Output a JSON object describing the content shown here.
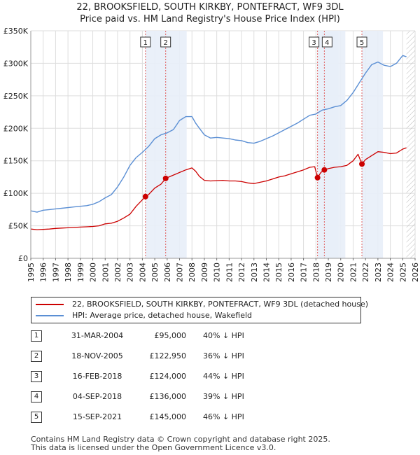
{
  "title_line1": "22, BROOKSFIELD, SOUTH KIRKBY, PONTEFRACT, WF9 3DL",
  "title_line2": "Price paid vs. HM Land Registry's House Price Index (HPI)",
  "colors": {
    "property": "#cc0000",
    "hpi": "#5b8fd4",
    "hatch": "#bbbbbb",
    "grid": "#dddddd",
    "band": "#e8eef8",
    "marker_line": "#e06060"
  },
  "chart_data": {
    "type": "line",
    "xlim": [
      1995,
      2026
    ],
    "ylim": [
      0,
      350000
    ],
    "x_ticks": [
      1995,
      1996,
      1997,
      1998,
      1999,
      2000,
      2001,
      2002,
      2003,
      2004,
      2005,
      2006,
      2007,
      2008,
      2009,
      2010,
      2011,
      2012,
      2013,
      2014,
      2015,
      2016,
      2017,
      2018,
      2019,
      2020,
      2021,
      2022,
      2023,
      2024,
      2025,
      2026
    ],
    "y_ticks": [
      {
        "value": 0,
        "label": "£0"
      },
      {
        "value": 50000,
        "label": "£50K"
      },
      {
        "value": 100000,
        "label": "£100K"
      },
      {
        "value": 150000,
        "label": "£150K"
      },
      {
        "value": 200000,
        "label": "£200K"
      },
      {
        "value": 250000,
        "label": "£250K"
      },
      {
        "value": 300000,
        "label": "£300K"
      },
      {
        "value": 350000,
        "label": "£350K"
      }
    ],
    "hatch_from": 2025.3,
    "series": [
      {
        "name": "22, BROOKSFIELD, SOUTH KIRKBY, PONTEFRACT, WF9 3DL (detached house)",
        "key": "property",
        "x": [
          1995,
          1995.5,
          1996,
          1996.5,
          1997,
          1997.5,
          1998,
          1998.5,
          1999,
          1999.5,
          2000,
          2000.5,
          2001,
          2001.5,
          2002,
          2002.5,
          2003,
          2003.5,
          2004.25,
          2004.5,
          2005,
          2005.5,
          2005.88,
          2006,
          2006.5,
          2007,
          2007.5,
          2008,
          2008.3,
          2008.6,
          2009,
          2009.5,
          2010,
          2010.5,
          2011,
          2011.5,
          2012,
          2012.5,
          2013,
          2013.5,
          2014,
          2014.5,
          2015,
          2015.5,
          2016,
          2016.5,
          2017,
          2017.5,
          2017.9,
          2018.13,
          2018.4,
          2018.68,
          2019,
          2019.5,
          2020,
          2020.5,
          2021,
          2021.4,
          2021.71,
          2022,
          2022.5,
          2023,
          2023.5,
          2024,
          2024.5,
          2025,
          2025.3
        ],
        "values": [
          45000,
          44000,
          44500,
          45000,
          46000,
          46500,
          47000,
          47500,
          48000,
          48500,
          49000,
          50000,
          53000,
          54000,
          57000,
          62000,
          68000,
          80000,
          95000,
          98000,
          108000,
          114000,
          122950,
          124000,
          128000,
          132000,
          136000,
          139000,
          134000,
          126000,
          120000,
          119000,
          119500,
          120000,
          119000,
          119000,
          118000,
          116000,
          115000,
          117000,
          119000,
          122000,
          125000,
          127000,
          130000,
          133000,
          136000,
          140000,
          141000,
          124000,
          132000,
          136000,
          138000,
          140000,
          141000,
          143000,
          150000,
          160000,
          145000,
          152000,
          158000,
          164000,
          163000,
          161000,
          162000,
          168000,
          170000
        ]
      },
      {
        "name": "HPI: Average price, detached house, Wakefield",
        "key": "hpi",
        "x": [
          1995,
          1995.5,
          1996,
          1996.5,
          1997,
          1997.5,
          1998,
          1998.5,
          1999,
          1999.5,
          2000,
          2000.5,
          2001,
          2001.5,
          2002,
          2002.5,
          2003,
          2003.5,
          2004,
          2004.5,
          2005,
          2005.5,
          2006,
          2006.5,
          2007,
          2007.5,
          2008,
          2008.3,
          2008.6,
          2009,
          2009.5,
          2010,
          2010.5,
          2011,
          2011.5,
          2012,
          2012.5,
          2013,
          2013.5,
          2014,
          2014.5,
          2015,
          2015.5,
          2016,
          2016.5,
          2017,
          2017.5,
          2018,
          2018.5,
          2019,
          2019.5,
          2020,
          2020.5,
          2021,
          2021.5,
          2022,
          2022.5,
          2023,
          2023.5,
          2024,
          2024.5,
          2025,
          2025.3
        ],
        "values": [
          73000,
          71000,
          74000,
          75000,
          76000,
          77000,
          78000,
          79000,
          80000,
          81000,
          83000,
          87000,
          93000,
          98000,
          110000,
          125000,
          143000,
          155000,
          163000,
          172000,
          184000,
          190000,
          193000,
          198000,
          212000,
          218000,
          218000,
          208000,
          200000,
          190000,
          185000,
          186000,
          185000,
          184000,
          182000,
          181000,
          178000,
          177000,
          180000,
          184000,
          188000,
          193000,
          198000,
          203000,
          208000,
          214000,
          220000,
          222000,
          228000,
          230000,
          233000,
          235000,
          243000,
          255000,
          270000,
          285000,
          298000,
          302000,
          297000,
          295000,
          300000,
          312000,
          310000
        ]
      }
    ],
    "transactions": [
      {
        "num": "1",
        "date": "31-MAR-2004",
        "x": 2004.25,
        "price_value": 95000,
        "price": "£95,000",
        "hpi": "40% ↓ HPI"
      },
      {
        "num": "2",
        "date": "18-NOV-2005",
        "x": 2005.88,
        "price_value": 122950,
        "price": "£122,950",
        "hpi": "36% ↓ HPI"
      },
      {
        "num": "3",
        "date": "16-FEB-2018",
        "x": 2018.13,
        "price_value": 124000,
        "price": "£124,000",
        "hpi": "44% ↓ HPI"
      },
      {
        "num": "4",
        "date": "04-SEP-2018",
        "x": 2018.68,
        "price_value": 136000,
        "price": "£136,000",
        "hpi": "39% ↓ HPI"
      },
      {
        "num": "5",
        "date": "15-SEP-2021",
        "x": 2021.71,
        "price_value": 145000,
        "price": "£145,000",
        "hpi": "46% ↓ HPI"
      }
    ]
  },
  "legend": {
    "property_label": "22, BROOKSFIELD, SOUTH KIRKBY, PONTEFRACT, WF9 3DL (detached house)",
    "hpi_label": "HPI: Average price, detached house, Wakefield"
  },
  "footer": {
    "line1": "Contains HM Land Registry data © Crown copyright and database right 2025.",
    "line2": "This data is licensed under the Open Government Licence v3.0."
  }
}
